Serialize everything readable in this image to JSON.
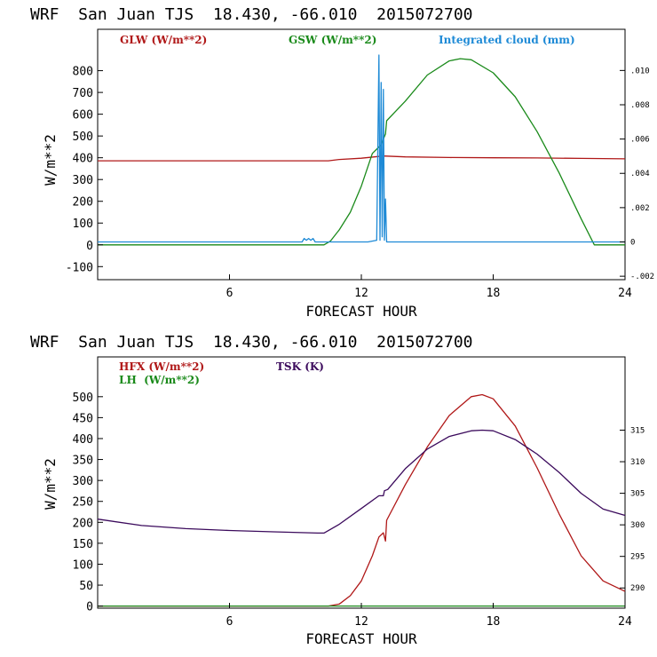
{
  "chart_data": [
    {
      "type": "line",
      "title": "WRF  San Juan TJS  18.430, -66.010  2015072700",
      "xlabel": "FORECAST HOUR",
      "ylabel": "W/m**2",
      "xlim": [
        0,
        24
      ],
      "ylim": [
        -160,
        990
      ],
      "xticks": [
        "6",
        "12",
        "18",
        "24"
      ],
      "yticks": [
        "-100",
        "0",
        "100",
        "200",
        "300",
        "400",
        "500",
        "600",
        "700",
        "800"
      ],
      "y2lim": [
        -0.0022,
        0.0124
      ],
      "y2ticks": [
        "-.002",
        "0",
        ".002",
        ".004",
        ".006",
        ".008",
        ".010"
      ],
      "legend": [
        "GLW (W/m**2)",
        "GSW (W/m**2)",
        "Integrated cloud (mm)"
      ],
      "series": [
        {
          "name": "GLW (W/m**2)",
          "color": "#b01818",
          "axis": "left",
          "x": [
            0,
            6,
            10.5,
            11,
            12,
            13,
            14,
            16,
            18,
            20,
            22,
            24
          ],
          "y": [
            386,
            386,
            386,
            392,
            398,
            408,
            404,
            401,
            400,
            399,
            397,
            395
          ]
        },
        {
          "name": "GSW (W/m**2)",
          "color": "#1a8a1a",
          "axis": "left",
          "x": [
            0,
            10.3,
            10.6,
            11,
            11.5,
            12,
            12.5,
            12.9,
            13.1,
            13.15,
            14,
            15,
            16,
            16.5,
            17,
            18,
            19,
            20,
            21,
            22,
            22.6,
            24
          ],
          "y": [
            0,
            0,
            18,
            70,
            150,
            270,
            420,
            460,
            510,
            570,
            660,
            780,
            845,
            855,
            850,
            790,
            680,
            520,
            330,
            120,
            0,
            0
          ]
        },
        {
          "name": "Integrated cloud (mm)",
          "color": "#1e8ad6",
          "axis": "right",
          "x": [
            0,
            9.3,
            9.4,
            9.5,
            9.6,
            9.7,
            9.8,
            9.9,
            10.0,
            12.3,
            12.7,
            12.8,
            12.85,
            12.9,
            12.95,
            13.0,
            13.05,
            13.1,
            13.15,
            24
          ],
          "y": [
            0,
            0,
            0.0002,
            0.0001,
            0.0002,
            0.0001,
            0.0002,
            0,
            0,
            0,
            0.0001,
            0.0109,
            0.0001,
            0.0093,
            0.0003,
            0.0089,
            0.0001,
            0.0025,
            0,
            0
          ]
        }
      ]
    },
    {
      "type": "line",
      "title": "WRF  San Juan TJS  18.430, -66.010  2015072700",
      "xlabel": "FORECAST HOUR",
      "ylabel": "W/m**2",
      "xlim": [
        0,
        24
      ],
      "ylim": [
        -5,
        595
      ],
      "xticks": [
        "6",
        "12",
        "18",
        "24"
      ],
      "yticks": [
        "0",
        "50",
        "100",
        "150",
        "200",
        "250",
        "300",
        "350",
        "400",
        "450",
        "500"
      ],
      "y2lim": [
        286.8,
        326.6
      ],
      "y2ticks": [
        "290",
        "295",
        "300",
        "305",
        "310",
        "315"
      ],
      "legend": [
        "HFX (W/m**2)",
        "LH  (W/m**2)",
        "TSK (K)"
      ],
      "series": [
        {
          "name": "HFX (W/m**2)",
          "color": "#b01818",
          "axis": "left",
          "x": [
            0,
            10.5,
            11,
            11.5,
            12,
            12.5,
            12.8,
            13.0,
            13.1,
            13.15,
            14,
            15,
            16,
            17,
            17.5,
            18,
            19,
            20,
            21,
            22,
            23,
            24
          ],
          "y": [
            0,
            0,
            5,
            25,
            60,
            120,
            165,
            175,
            155,
            205,
            290,
            380,
            455,
            500,
            505,
            495,
            430,
            330,
            220,
            120,
            60,
            35
          ]
        },
        {
          "name": "LH  (W/m**2)",
          "color": "#1a8a1a",
          "axis": "left",
          "x": [
            0,
            24
          ],
          "y": [
            0,
            0
          ]
        },
        {
          "name": "TSK (K)",
          "color": "#3b0a5c",
          "axis": "right",
          "x": [
            0,
            2,
            4,
            6,
            8,
            10,
            10.3,
            11,
            12,
            12.8,
            13.0,
            13.05,
            13.2,
            14,
            15,
            16,
            17,
            17.5,
            18,
            19,
            20,
            21,
            22,
            23,
            24
          ],
          "y": [
            300.9,
            299.9,
            299.4,
            299.1,
            298.9,
            298.7,
            298.7,
            300.1,
            302.6,
            304.6,
            304.6,
            305.4,
            305.6,
            308.9,
            312.0,
            314.0,
            314.9,
            315.0,
            314.9,
            313.5,
            311.2,
            308.3,
            305.0,
            302.5,
            301.5
          ]
        }
      ]
    }
  ]
}
